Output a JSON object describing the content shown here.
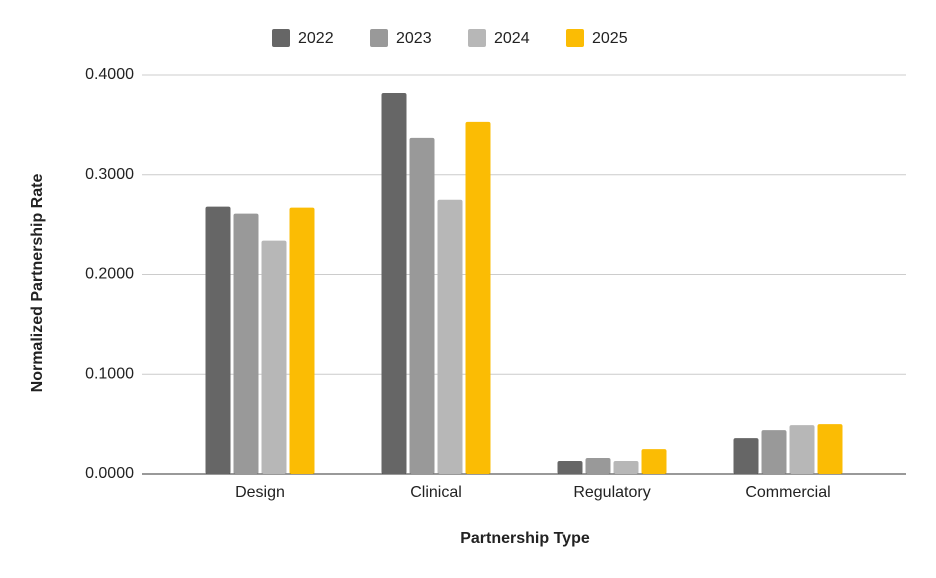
{
  "chart_data": {
    "type": "bar",
    "x_label": "Partnership Type",
    "y_label": "Normalized Partnership Rate",
    "categories": [
      "Design",
      "Clinical",
      "Regulatory",
      "Commercial"
    ],
    "series": [
      {
        "name": "2022",
        "color": "#666666",
        "values": [
          0.268,
          0.382,
          0.013,
          0.036
        ]
      },
      {
        "name": "2023",
        "color": "#999999",
        "values": [
          0.261,
          0.337,
          0.016,
          0.044
        ]
      },
      {
        "name": "2024",
        "color": "#b7b7b7",
        "values": [
          0.234,
          0.275,
          0.013,
          0.049
        ]
      },
      {
        "name": "2025",
        "color": "#fbbc04",
        "values": [
          0.267,
          0.353,
          0.025,
          0.05
        ]
      }
    ],
    "ylim": [
      0,
      0.4
    ],
    "yticks": [
      {
        "value": 0,
        "label": "0.0000"
      },
      {
        "value": 0.1,
        "label": "0.1000"
      },
      {
        "value": 0.2,
        "label": "0.2000"
      },
      {
        "value": 0.3,
        "label": "0.3000"
      },
      {
        "value": 0.4,
        "label": "0.4000"
      }
    ],
    "grid": true,
    "legend": "top"
  }
}
